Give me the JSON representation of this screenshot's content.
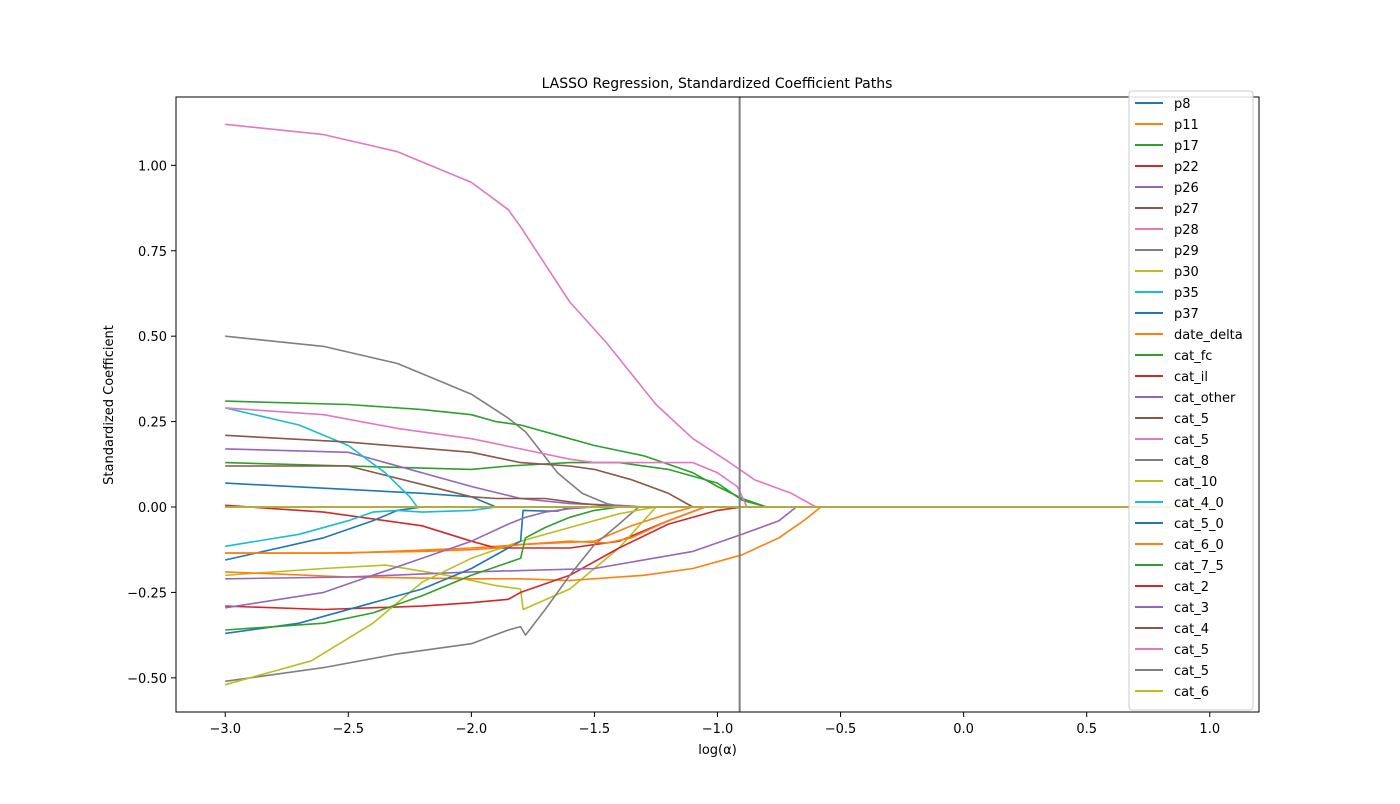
{
  "chart_data": {
    "type": "line",
    "title": "LASSO Regression, Standardized Coefficient Paths",
    "xlabel": "log(α)",
    "ylabel": "Standardized Coefficient",
    "xlim": [
      -3.2,
      1.2
    ],
    "ylim": [
      -0.6,
      1.2
    ],
    "xticks": [
      -3.0,
      -2.5,
      -2.0,
      -1.5,
      -1.0,
      -0.5,
      0.0,
      0.5,
      1.0
    ],
    "xtick_labels": [
      "−3.0",
      "−2.5",
      "−2.0",
      "−1.5",
      "−1.0",
      "−0.5",
      "0.0",
      "0.5",
      "1.0"
    ],
    "yticks": [
      -0.5,
      -0.25,
      0.0,
      0.25,
      0.5,
      0.75,
      1.0
    ],
    "ytick_labels": [
      "−0.50",
      "−0.25",
      "0.00",
      "0.25",
      "0.50",
      "0.75",
      "1.00"
    ],
    "grid": false,
    "legend_position": "top-right",
    "vline_x": -0.91,
    "vline_color": "#808080",
    "series": [
      {
        "name": "p8",
        "color": "#1f77b4",
        "x": [
          -3,
          -2.6,
          -2.2,
          -2.0,
          -1.9,
          -1.5
        ],
        "y": [
          0.07,
          0.055,
          0.04,
          0.03,
          0.0,
          0.0
        ]
      },
      {
        "name": "p11",
        "color": "#ff7f0e",
        "x": [
          -3,
          -2.5,
          -2.0,
          -1.8,
          -1.5,
          -1.35,
          -1.2,
          -1.1
        ],
        "y": [
          -0.135,
          -0.135,
          -0.12,
          -0.11,
          -0.1,
          -0.055,
          -0.02,
          0.0
        ]
      },
      {
        "name": "p17",
        "color": "#2ca02c",
        "x": [
          -3,
          -2.5,
          -2.0,
          -1.85,
          -1.6,
          -1.4,
          -1.2,
          -1.0,
          -0.9,
          -0.8
        ],
        "y": [
          0.13,
          0.12,
          0.11,
          0.12,
          0.13,
          0.13,
          0.11,
          0.07,
          0.02,
          0.0
        ]
      },
      {
        "name": "p22",
        "color": "#d62728",
        "x": [
          -3,
          -2.6,
          -2.2,
          -2.0,
          -1.9,
          -1.6,
          -1.4,
          -1.2,
          -1.05
        ],
        "y": [
          0.005,
          -0.015,
          -0.055,
          -0.1,
          -0.12,
          -0.12,
          -0.1,
          -0.04,
          0.0
        ]
      },
      {
        "name": "p26",
        "color": "#9467bd",
        "x": [
          -3,
          -2.5,
          -2.0,
          -1.8,
          -1.6,
          -1.4,
          -1.3
        ],
        "y": [
          0.17,
          0.16,
          0.06,
          0.025,
          0.01,
          0.005,
          0.0
        ]
      },
      {
        "name": "p27",
        "color": "#8c564b",
        "x": [
          -3,
          -2.5,
          -2.0,
          -1.9,
          -1.7,
          -1.55,
          -1.4,
          -1.3
        ],
        "y": [
          0.12,
          0.12,
          0.03,
          0.025,
          0.025,
          0.01,
          0.0,
          0.0
        ]
      },
      {
        "name": "p28",
        "color": "#e377c2",
        "x": [
          -3,
          -2.6,
          -2.3,
          -2.0,
          -1.85,
          -1.8,
          -1.6,
          -1.45,
          -1.25,
          -1.1,
          -0.95,
          -0.85,
          -0.7,
          -0.6
        ],
        "y": [
          1.12,
          1.09,
          1.04,
          0.95,
          0.87,
          0.82,
          0.6,
          0.48,
          0.3,
          0.2,
          0.13,
          0.08,
          0.04,
          0.0
        ]
      },
      {
        "name": "p29",
        "color": "#7f7f7f",
        "x": [
          -3,
          -2.6,
          -2.3,
          -2.0,
          -1.85,
          -1.78,
          -1.65,
          -1.55,
          -1.45,
          -1.38
        ],
        "y": [
          0.5,
          0.47,
          0.42,
          0.33,
          0.26,
          0.22,
          0.1,
          0.04,
          0.01,
          0.0
        ]
      },
      {
        "name": "p30",
        "color": "#bcbd22",
        "x": [
          -3,
          -2.6,
          -2.35,
          -2.1,
          -1.9,
          -1.8,
          -1.79,
          -1.6,
          -1.4,
          -1.25
        ],
        "y": [
          -0.2,
          -0.18,
          -0.17,
          -0.2,
          -0.23,
          -0.24,
          -0.3,
          -0.24,
          -0.12,
          0.0
        ]
      },
      {
        "name": "p35",
        "color": "#17becf",
        "x": [
          -3,
          -2.7,
          -2.5,
          -2.35,
          -2.25,
          -2.22
        ],
        "y": [
          0.29,
          0.24,
          0.18,
          0.1,
          0.03,
          0.0
        ]
      },
      {
        "name": "p37",
        "color": "#1f77b4",
        "x": [
          -3,
          -2.6,
          -2.4,
          -2.3,
          -2.2,
          -2.0,
          -1.9
        ],
        "y": [
          -0.155,
          -0.09,
          -0.04,
          -0.01,
          0.0,
          0.0,
          0.0
        ]
      },
      {
        "name": "date_delta",
        "color": "#ff7f0e",
        "x": [
          -3,
          -2.5,
          -2.0,
          -1.8,
          -1.6,
          -1.3,
          -1.1,
          -0.9,
          -0.75,
          -0.65,
          -0.58
        ],
        "y": [
          -0.19,
          -0.205,
          -0.21,
          -0.21,
          -0.215,
          -0.2,
          -0.18,
          -0.14,
          -0.09,
          -0.04,
          0.0
        ]
      },
      {
        "name": "cat_fc",
        "color": "#2ca02c",
        "x": [
          -3,
          -2.5,
          -2.2,
          -2.0,
          -1.9,
          -1.8,
          -1.6,
          -1.5,
          -1.3,
          -1.1,
          -1.0,
          -0.9,
          -0.8
        ],
        "y": [
          0.31,
          0.3,
          0.285,
          0.27,
          0.25,
          0.24,
          0.2,
          0.18,
          0.15,
          0.1,
          0.06,
          0.025,
          0.0
        ]
      },
      {
        "name": "cat_il",
        "color": "#d62728",
        "x": [
          -3,
          -2.6,
          -2.2,
          -2.0,
          -1.85,
          -1.8,
          -1.6,
          -1.4,
          -1.2,
          -1.0,
          -0.9
        ],
        "y": [
          -0.29,
          -0.3,
          -0.29,
          -0.28,
          -0.27,
          -0.25,
          -0.2,
          -0.12,
          -0.05,
          -0.01,
          0.0
        ]
      },
      {
        "name": "cat_other",
        "color": "#9467bd",
        "x": [
          -3,
          -2.5,
          -2.0,
          -1.5,
          -1.1,
          -0.9,
          -0.75,
          -0.68
        ],
        "y": [
          -0.21,
          -0.205,
          -0.19,
          -0.18,
          -0.13,
          -0.08,
          -0.04,
          0.0
        ]
      },
      {
        "name": "cat_5",
        "color": "#8c564b",
        "x": [
          -3,
          -2.5,
          -2.0,
          -1.8,
          -1.6,
          -1.5,
          -1.35,
          -1.2,
          -1.1
        ],
        "y": [
          0.21,
          0.19,
          0.16,
          0.13,
          0.12,
          0.11,
          0.08,
          0.04,
          0.0
        ]
      },
      {
        "name": "cat_5",
        "color": "#e377c2",
        "x": [
          -3,
          -2.6,
          -2.3,
          -2.0,
          -1.8,
          -1.6,
          -1.5,
          -1.3,
          -1.1,
          -1.0,
          -0.92,
          -0.88
        ],
        "y": [
          0.29,
          0.27,
          0.23,
          0.2,
          0.17,
          0.14,
          0.13,
          0.13,
          0.13,
          0.1,
          0.06,
          0.0
        ]
      },
      {
        "name": "cat_8",
        "color": "#7f7f7f",
        "x": [
          -3,
          -2.6,
          -2.3,
          -2.0,
          -1.85,
          -1.8,
          -1.78,
          -1.7,
          -1.6,
          -1.5,
          -1.4,
          -1.32
        ],
        "y": [
          -0.51,
          -0.47,
          -0.43,
          -0.4,
          -0.36,
          -0.35,
          -0.375,
          -0.3,
          -0.2,
          -0.11,
          -0.05,
          0.0
        ]
      },
      {
        "name": "cat_10",
        "color": "#bcbd22",
        "x": [
          -3,
          -2.65,
          -2.4,
          -2.2,
          -2.0,
          -1.8,
          -1.6,
          -1.4,
          -1.25
        ],
        "y": [
          -0.52,
          -0.45,
          -0.34,
          -0.22,
          -0.15,
          -0.1,
          -0.06,
          -0.02,
          0.0
        ]
      },
      {
        "name": "cat_4_0",
        "color": "#17becf",
        "x": [
          -3,
          -2.7,
          -2.5,
          -2.4,
          -2.3,
          -2.2,
          -2.0,
          -1.9
        ],
        "y": [
          -0.115,
          -0.08,
          -0.04,
          -0.015,
          -0.01,
          -0.015,
          -0.01,
          0.0
        ]
      },
      {
        "name": "cat_5_0",
        "color": "#1f77b4",
        "x": [
          -3,
          -2.7,
          -2.4,
          -2.2,
          -2.0,
          -1.85,
          -1.8,
          -1.79,
          -1.7,
          -1.65,
          -1.6
        ],
        "y": [
          -0.37,
          -0.34,
          -0.28,
          -0.24,
          -0.18,
          -0.12,
          -0.1,
          -0.01,
          -0.012,
          -0.012,
          0.0
        ]
      },
      {
        "name": "cat_6_0",
        "color": "#ff7f0e",
        "x": [
          -3,
          -2.6,
          -2.2,
          -2.0,
          -1.9,
          -1.8,
          -1.6,
          -1.45,
          -1.35,
          -1.2,
          -1.05
        ],
        "y": [
          -0.135,
          -0.135,
          -0.13,
          -0.125,
          -0.12,
          -0.11,
          -0.1,
          -0.105,
          -0.09,
          -0.04,
          0.0
        ]
      },
      {
        "name": "cat_7_5",
        "color": "#2ca02c",
        "x": [
          -3,
          -2.6,
          -2.4,
          -2.2,
          -2.0,
          -1.8,
          -1.78,
          -1.7,
          -1.6,
          -1.5,
          -1.4
        ],
        "y": [
          -0.36,
          -0.34,
          -0.31,
          -0.26,
          -0.2,
          -0.15,
          -0.09,
          -0.06,
          -0.03,
          -0.01,
          0.0
        ]
      },
      {
        "name": "cat_2",
        "color": "#d62728",
        "x": [
          -3,
          -2.5,
          -2.0,
          -1.5,
          -1.0
        ],
        "y": [
          0.0,
          0.0,
          0.0,
          0.0,
          0.0
        ]
      },
      {
        "name": "cat_3",
        "color": "#9467bd",
        "x": [
          -3,
          -2.6,
          -2.4,
          -2.2,
          -2.0,
          -1.85,
          -1.78,
          -1.7,
          -1.6,
          -1.5
        ],
        "y": [
          -0.295,
          -0.25,
          -0.2,
          -0.15,
          -0.1,
          -0.05,
          -0.03,
          -0.015,
          -0.005,
          0.0
        ]
      },
      {
        "name": "cat_4",
        "color": "#8c564b",
        "x": [
          -3,
          -2.5,
          -2.0,
          -1.5
        ],
        "y": [
          0.0,
          0.0,
          0.0,
          0.0
        ]
      },
      {
        "name": "cat_5",
        "color": "#e377c2",
        "x": [
          -3,
          -2.5,
          -2.0,
          -1.5
        ],
        "y": [
          0.0,
          0.0,
          0.0,
          0.0
        ]
      },
      {
        "name": "cat_5",
        "color": "#7f7f7f",
        "x": [
          -3,
          -2.5,
          -2.0,
          -1.5
        ],
        "y": [
          0.0,
          0.0,
          0.0,
          0.0
        ]
      },
      {
        "name": "cat_6",
        "color": "#bcbd22",
        "x": [
          -3,
          -2.5,
          -2.0,
          -1.5,
          -1.0,
          -0.5,
          0.0,
          0.5,
          1.0
        ],
        "y": [
          0.0,
          0.0,
          0.0,
          0.0,
          0.0,
          0.0,
          0.0,
          0.0,
          0.0
        ]
      }
    ]
  }
}
